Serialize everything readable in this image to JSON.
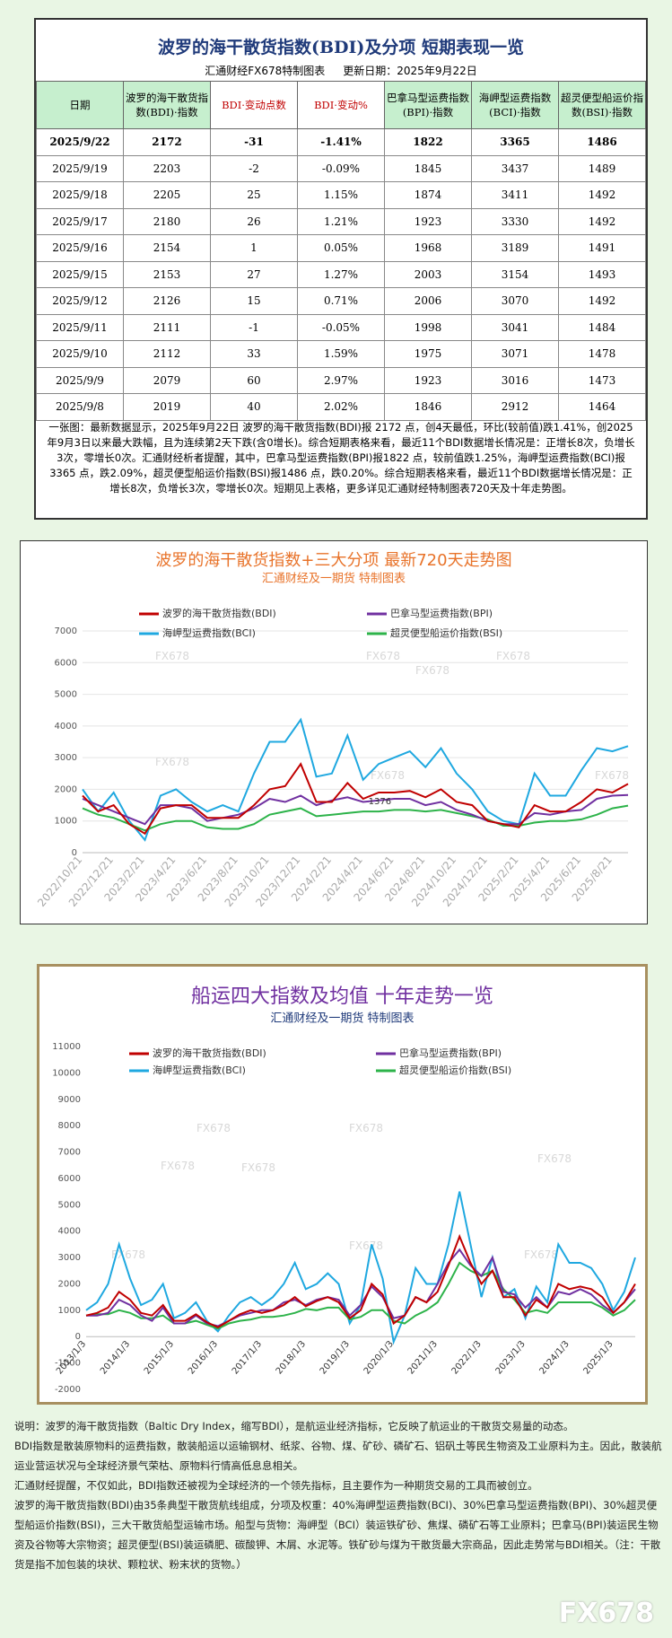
{
  "header": {
    "title": "波罗的海干散货指数(BDI)及分项  短期表现一览",
    "subtitle": "汇通财经FX678特制图表",
    "updated": "更新日期：2025年9月22日"
  },
  "table": {
    "columns": [
      "日期",
      "波罗的海干散货指数(BDI)·指数",
      "BDI·变动点数",
      "BDI·变动%",
      "巴拿马型运费指数(BPI)·指数",
      "海岬型运费指数(BCI)·指数",
      "超灵便型船运价指数(BSI)·指数"
    ],
    "rows": [
      [
        "2025/9/22",
        "2172",
        "-31",
        "-1.41%",
        "1822",
        "3365",
        "1486"
      ],
      [
        "2025/9/19",
        "2203",
        "-2",
        "-0.09%",
        "1845",
        "3437",
        "1489"
      ],
      [
        "2025/9/18",
        "2205",
        "25",
        "1.15%",
        "1874",
        "3411",
        "1492"
      ],
      [
        "2025/9/17",
        "2180",
        "26",
        "1.21%",
        "1923",
        "3330",
        "1492"
      ],
      [
        "2025/9/16",
        "2154",
        "1",
        "0.05%",
        "1968",
        "3189",
        "1491"
      ],
      [
        "2025/9/15",
        "2153",
        "27",
        "1.27%",
        "2003",
        "3154",
        "1493"
      ],
      [
        "2025/9/12",
        "2126",
        "15",
        "0.71%",
        "2006",
        "3070",
        "1492"
      ],
      [
        "2025/9/11",
        "2111",
        "-1",
        "-0.05%",
        "1998",
        "3041",
        "1484"
      ],
      [
        "2025/9/10",
        "2112",
        "33",
        "1.59%",
        "1975",
        "3071",
        "1478"
      ],
      [
        "2025/9/9",
        "2079",
        "60",
        "2.97%",
        "1923",
        "3016",
        "1473"
      ],
      [
        "2025/9/8",
        "2019",
        "40",
        "2.02%",
        "1846",
        "2912",
        "1464"
      ]
    ]
  },
  "summary": "一张图：最新数据显示，2025年9月22日 波罗的海干散货指数(BDI)报 2172 点，创4天最低，环比(较前值)跌1.41%，创2025年9月3日以来最大跌幅，且为连续第2天下跌(含0增长)。综合短期表格来看，最近11个BDI数据增长情况是：正增长8次，负增长3次，零增长0次。汇通财经析者提醒，其中，巴拿马型运费指数(BPI)报1822 点，较前值跌1.25%，海岬型运费指数(BCI)报3365 点，跌2.09%，超灵便型船运价指数(BSI)报1486 点，跌0.20%。综合短期表格来看，最近11个BDI数据增长情况是：正增长8次，负增长3次，零增长0次。短期见上表格，更多详见汇通财经特制图表720天及十年走势图。",
  "chart_data": [
    {
      "type": "line",
      "title": "波罗的海干散货指数+三大分项  最新720天走势图",
      "subtitle": "汇通财经及一期货  特制图表",
      "watermark": "FX678",
      "annotation": "1376",
      "categories": [
        "2022/10/21",
        null,
        "2022/12/21",
        null,
        "2023/2/21",
        null,
        "2023/4/21",
        null,
        "2023/6/21",
        null,
        "2023/8/21",
        null,
        "2023/10/21",
        null,
        "2023/12/21",
        null,
        "2024/2/21",
        null,
        "2024/4/21",
        null,
        "2024/6/21",
        null,
        "2024/8/21",
        null,
        "2024/10/21",
        null,
        "2024/12/21",
        null,
        "2025/2/21",
        null,
        "2025/4/21",
        null,
        "2025/6/21",
        null,
        "2025/8/21",
        null
      ],
      "series": [
        {
          "name": "波罗的海干散货指数(BDI)",
          "color": "#c00000",
          "values": [
            1800,
            1300,
            1500,
            900,
            600,
            1400,
            1500,
            1500,
            1100,
            1100,
            1100,
            1500,
            2000,
            2100,
            2800,
            1600,
            1600,
            2200,
            1700,
            1900,
            1900,
            1950,
            1750,
            2000,
            1600,
            1500,
            1000,
            900,
            800,
            1500,
            1300,
            1300,
            1600,
            2000,
            1900,
            2172
          ]
        },
        {
          "name": "巴拿马型运费指数(BPI)",
          "color": "#7030a0",
          "values": [
            1700,
            1500,
            1300,
            1100,
            900,
            1500,
            1500,
            1400,
            1000,
            1100,
            1200,
            1400,
            1700,
            1600,
            1800,
            1500,
            1650,
            1750,
            1600,
            1650,
            1700,
            1700,
            1500,
            1600,
            1350,
            1200,
            1000,
            900,
            900,
            1250,
            1200,
            1300,
            1350,
            1700,
            1800,
            1822
          ]
        },
        {
          "name": "海岬型运费指数(BCI)",
          "color": "#1fa8e0",
          "values": [
            2000,
            1300,
            1900,
            1000,
            400,
            1800,
            2000,
            1600,
            1300,
            1500,
            1300,
            2500,
            3500,
            3500,
            4200,
            2400,
            2500,
            3700,
            2300,
            2800,
            3000,
            3200,
            2700,
            3300,
            2500,
            2000,
            1300,
            1000,
            900,
            2500,
            1800,
            1800,
            2600,
            3300,
            3200,
            3365
          ]
        },
        {
          "name": "超灵便型船运价指数(BSI)",
          "color": "#2db34a",
          "values": [
            1400,
            1200,
            1100,
            900,
            700,
            900,
            1000,
            1000,
            800,
            750,
            750,
            900,
            1200,
            1300,
            1400,
            1150,
            1200,
            1250,
            1300,
            1300,
            1350,
            1350,
            1300,
            1350,
            1250,
            1150,
            1050,
            850,
            850,
            950,
            1000,
            1000,
            1050,
            1200,
            1400,
            1486
          ]
        }
      ],
      "ylim": [
        0,
        7000
      ],
      "yticks": [
        0,
        1000,
        2000,
        3000,
        4000,
        5000,
        6000,
        7000
      ],
      "grid": true
    },
    {
      "type": "line",
      "title": "船运四大指数及均值 十年走势一览",
      "subtitle": "汇通财经及一期货 特制图表",
      "watermark": "FX678",
      "categories": [
        "2013/1/3",
        null,
        null,
        null,
        "2014/1/3",
        null,
        null,
        null,
        "2015/1/3",
        null,
        null,
        null,
        "2016/1/3",
        null,
        null,
        null,
        "2017/1/3",
        null,
        null,
        null,
        "2018/1/3",
        null,
        null,
        null,
        "2019/1/3",
        null,
        null,
        null,
        "2020/1/3",
        null,
        null,
        null,
        "2021/1/3",
        null,
        null,
        null,
        "2022/1/3",
        null,
        null,
        null,
        "2023/1/3",
        null,
        null,
        null,
        "2024/1/3",
        null,
        null,
        null,
        "2025/1/3",
        null,
        null
      ],
      "series": [
        {
          "name": "波罗的海干散货指数(BDI)",
          "color": "#c00000",
          "values": [
            800,
            900,
            1100,
            1700,
            1400,
            900,
            800,
            1200,
            600,
            600,
            850,
            550,
            350,
            600,
            850,
            1000,
            900,
            1000,
            1200,
            1500,
            1150,
            1350,
            1500,
            1300,
            700,
            1000,
            2000,
            1600,
            500,
            800,
            1500,
            1300,
            1700,
            2700,
            3800,
            2800,
            2000,
            2500,
            1500,
            1500,
            800,
            1400,
            1100,
            2000,
            1800,
            1900,
            1800,
            1500,
            900,
            1300,
            2000
          ]
        },
        {
          "name": "巴拿马型运费指数(BPI)",
          "color": "#7030a0",
          "values": [
            800,
            800,
            900,
            1400,
            1200,
            800,
            600,
            1100,
            500,
            500,
            800,
            500,
            400,
            600,
            800,
            900,
            1000,
            1000,
            1300,
            1400,
            1200,
            1400,
            1500,
            1400,
            800,
            1200,
            1900,
            1500,
            700,
            800,
            1500,
            1300,
            2000,
            2800,
            3300,
            2700,
            2300,
            3000,
            1700,
            1600,
            1100,
            1500,
            1100,
            1700,
            1600,
            1800,
            1600,
            1200,
            900,
            1300,
            1800
          ]
        },
        {
          "name": "海岬型运费指数(BCI)",
          "color": "#1fa8e0",
          "values": [
            1000,
            1300,
            2000,
            3500,
            2200,
            1200,
            1400,
            2000,
            700,
            900,
            1300,
            600,
            200,
            800,
            1300,
            1500,
            1200,
            1500,
            2000,
            2800,
            1800,
            2000,
            2400,
            2000,
            500,
            1200,
            3500,
            2200,
            -200,
            800,
            2600,
            2000,
            2000,
            3500,
            5500,
            3500,
            1500,
            3000,
            1500,
            1800,
            700,
            1900,
            1300,
            3500,
            2800,
            2800,
            2600,
            2000,
            1000,
            1700,
            3000
          ]
        },
        {
          "name": "超灵便型船运价指数(BSI)",
          "color": "#2db34a",
          "values": [
            800,
            850,
            850,
            1000,
            900,
            700,
            700,
            800,
            500,
            500,
            600,
            450,
            300,
            500,
            600,
            650,
            750,
            750,
            800,
            900,
            1050,
            1000,
            1100,
            1100,
            650,
            750,
            1000,
            1000,
            600,
            500,
            800,
            1000,
            1300,
            2000,
            2800,
            2500,
            2300,
            2500,
            1800,
            1400,
            900,
            1000,
            900,
            1300,
            1300,
            1300,
            1300,
            1100,
            800,
            1000,
            1400
          ]
        }
      ],
      "ylim": [
        -2000,
        11000
      ],
      "yticks": [
        -2000,
        -1000,
        0,
        1000,
        2000,
        3000,
        4000,
        5000,
        6000,
        7000,
        8000,
        9000,
        10000,
        11000
      ],
      "grid": false
    }
  ],
  "notes": [
    "说明：波罗的海干散货指数（Baltic Dry Index，缩写BDI），是航运业经济指标，它反映了航运业的干散货交易量的动态。",
    "BDI指数是散装原物料的运费指数，散装船运以运输钢材、纸浆、谷物、煤、矿砂、磷矿石、铝矾土等民生物资及工业原料为主。因此，散装航运业营运状况与全球经济景气荣枯、原物料行情高低息息相关。",
    "汇通财经提醒，不仅如此，BDI指数还被视为全球经济的一个领先指标，且主要作为一种期货交易的工具而被创立。",
    "波罗的海干散货指数(BDI)由35条典型干散货航线组成，分项及权重：40%海岬型运费指数(BCI)、30%巴拿马型运费指数(BPI)、30%超灵便型船运价指数(BSI)，三大干散货船型运输市场。船型与货物：海岬型（BCI）装运铁矿砂、焦煤、磷矿石等工业原料；巴拿马(BPI)装运民生物资及谷物等大宗物资；超灵便型(BSI)装运磷肥、碳酸钾、木屑、水泥等。铁矿砂与煤为干散货最大宗商品，因此走势常与BDI相关。（注：干散货是指不加包装的块状、颗粒状、粉末状的货物。）"
  ],
  "logo": "FX678"
}
